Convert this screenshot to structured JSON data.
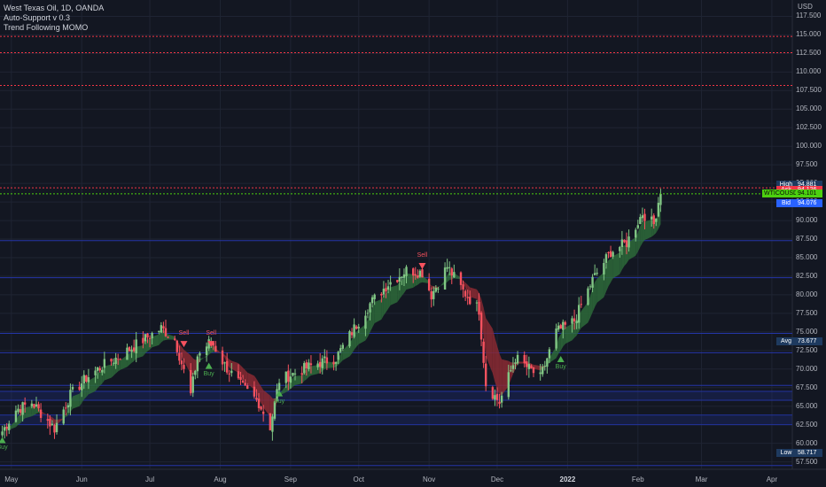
{
  "legend": {
    "symbol": "West Texas Oil, 1D, OANDA",
    "indicator1": "Auto-Support v 0.3",
    "indicator2": "Trend Following MOMO"
  },
  "currency_label": "USD",
  "price_axis": {
    "min": 56.5,
    "max": 119.7,
    "ticks": [
      "57.500",
      "60.000",
      "62.500",
      "65.000",
      "67.500",
      "70.000",
      "72.500",
      "75.000",
      "77.500",
      "80.000",
      "82.500",
      "85.000",
      "87.500",
      "90.000",
      "92.500",
      "95.000",
      "97.500",
      "100.000",
      "102.500",
      "105.000",
      "107.500",
      "110.000",
      "112.500",
      "115.000",
      "117.500"
    ]
  },
  "time_axis": [
    {
      "label": "May",
      "major": false
    },
    {
      "label": "Jun",
      "major": false
    },
    {
      "label": "Jul",
      "major": false
    },
    {
      "label": "Aug",
      "major": false
    },
    {
      "label": "Sep",
      "major": false
    },
    {
      "label": "Oct",
      "major": false
    },
    {
      "label": "Nov",
      "major": false
    },
    {
      "label": "Dec",
      "major": false
    },
    {
      "label": "2022",
      "major": true
    },
    {
      "label": "Feb",
      "major": false
    },
    {
      "label": "Mar",
      "major": false
    },
    {
      "label": "Apr",
      "major": false
    }
  ],
  "price_tags": [
    {
      "name": "high",
      "label": "High",
      "value": "94.881",
      "color": "#1e3a5f",
      "price": 94.881
    },
    {
      "name": "ask",
      "label": "Ask",
      "value": "94.126",
      "color": "#f23645",
      "price": 94.126
    },
    {
      "name": "last",
      "label": "WTICOUSD",
      "value": "94.101",
      "color": "#4cd00f",
      "price": 93.6
    },
    {
      "name": "bid",
      "label": "Bid",
      "value": "94.076",
      "color": "#2962ff",
      "price": 92.3
    },
    {
      "name": "avg",
      "label": "Avg",
      "value": "73.677",
      "color": "#1e3a5f",
      "price": 73.677
    },
    {
      "name": "low",
      "label": "Low",
      "value": "58.717",
      "color": "#1e3a5f",
      "price": 58.717
    }
  ],
  "signals": [
    {
      "type": "sell",
      "label": "Sell",
      "date": "2021-07-16",
      "price": 73.3
    },
    {
      "type": "sell",
      "label": "Sell",
      "date": "2021-07-28",
      "price": 73.3
    },
    {
      "type": "sell",
      "label": "Sell",
      "date": "2021-10-29",
      "price": 83.8
    },
    {
      "type": "buy",
      "label": "Buy",
      "date": "2021-04-27",
      "price": 60.5
    },
    {
      "type": "buy",
      "label": "Buy",
      "date": "2021-07-27",
      "price": 70.5
    },
    {
      "type": "buy",
      "label": "Buy",
      "date": "2021-08-27",
      "price": 66.8
    },
    {
      "type": "buy",
      "label": "Buy",
      "date": "2021-12-29",
      "price": 71.4
    }
  ],
  "resistance_lines": [
    108.2,
    112.6,
    114.8
  ],
  "blue_levels": [
    57.0,
    62.5,
    63.8,
    65.8,
    67.0,
    67.8,
    72.2,
    74.8,
    82.3,
    87.3
  ],
  "chart_data": {
    "type": "candlestick",
    "title": "West Texas Oil, 1D, OANDA",
    "ylim": [
      56.5,
      119.7
    ],
    "x_range": [
      "2021-04-26",
      "2022-04-10"
    ],
    "close_path": [
      [
        "2021-04-27",
        61.6
      ],
      [
        "2021-05-03",
        64.5
      ],
      [
        "2021-05-10",
        65.5
      ],
      [
        "2021-05-20",
        62.0
      ],
      [
        "2021-05-27",
        66.5
      ],
      [
        "2021-06-03",
        68.8
      ],
      [
        "2021-06-10",
        70.4
      ],
      [
        "2021-06-18",
        71.8
      ],
      [
        "2021-06-25",
        73.3
      ],
      [
        "2021-07-06",
        75.5
      ],
      [
        "2021-07-12",
        74.0
      ],
      [
        "2021-07-19",
        66.5
      ],
      [
        "2021-07-22",
        71.8
      ],
      [
        "2021-07-28",
        73.8
      ],
      [
        "2021-08-03",
        70.5
      ],
      [
        "2021-08-10",
        67.8
      ],
      [
        "2021-08-18",
        65.5
      ],
      [
        "2021-08-23",
        62.2
      ],
      [
        "2021-08-27",
        68.5
      ],
      [
        "2021-09-03",
        69.5
      ],
      [
        "2021-09-13",
        70.8
      ],
      [
        "2021-09-21",
        71.5
      ],
      [
        "2021-09-28",
        75.0
      ],
      [
        "2021-10-06",
        78.8
      ],
      [
        "2021-10-14",
        81.5
      ],
      [
        "2021-10-22",
        83.3
      ],
      [
        "2021-10-29",
        83.0
      ],
      [
        "2021-11-02",
        80.0
      ],
      [
        "2021-11-09",
        83.8
      ],
      [
        "2021-11-16",
        80.5
      ],
      [
        "2021-11-23",
        78.0
      ],
      [
        "2021-11-26",
        68.0
      ],
      [
        "2021-12-02",
        65.5
      ],
      [
        "2021-12-09",
        71.5
      ],
      [
        "2021-12-20",
        68.8
      ],
      [
        "2021-12-27",
        75.0
      ],
      [
        "2022-01-04",
        76.5
      ],
      [
        "2022-01-12",
        82.0
      ],
      [
        "2022-01-20",
        85.8
      ],
      [
        "2022-01-27",
        87.0
      ],
      [
        "2022-02-03",
        91.0
      ],
      [
        "2022-02-08",
        89.5
      ],
      [
        "2022-02-11",
        94.1
      ]
    ]
  }
}
